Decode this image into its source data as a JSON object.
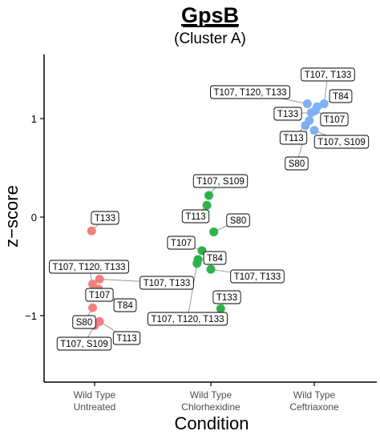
{
  "chart_data": {
    "type": "scatter",
    "title": "GpsB",
    "subtitle": "(Cluster A)",
    "xlabel": "Condition",
    "ylabel": "z−score",
    "categories": [
      {
        "line1": "Wild Type",
        "line2": "Untreated"
      },
      {
        "line1": "Wild Type",
        "line2": "Chlorhexidine"
      },
      {
        "line1": "Wild Type",
        "line2": "Ceftriaxone"
      }
    ],
    "yticks": [
      "1",
      "0",
      "−1"
    ],
    "ylim": [
      -1.65,
      1.55
    ],
    "colors": {
      "Wild Type Untreated": "#f08080",
      "Wild Type Chlorhexidine": "#2db34a",
      "Wild Type Ceftriaxone": "#7fb0f0"
    },
    "series": [
      {
        "category": 0,
        "points": [
          {
            "site": "T133",
            "x": -0.03,
            "y": -0.14
          },
          {
            "site": "T107, T120, T133",
            "x": -0.02,
            "y": -0.68
          },
          {
            "site": "T107, T133",
            "x": 0.05,
            "y": -0.63
          },
          {
            "site": "T107",
            "x": -0.02,
            "y": -0.78
          },
          {
            "site": "T84",
            "x": 0.04,
            "y": -0.73
          },
          {
            "site": "S80",
            "x": -0.02,
            "y": -0.92
          },
          {
            "site": "T107, S109",
            "x": 0.0,
            "y": -1.1
          },
          {
            "site": "T113",
            "x": 0.05,
            "y": -1.06
          }
        ]
      },
      {
        "category": 1,
        "points": [
          {
            "site": "T107, S109",
            "x": -0.02,
            "y": 0.22
          },
          {
            "site": "T113",
            "x": -0.04,
            "y": 0.12
          },
          {
            "site": "S80",
            "x": 0.03,
            "y": -0.15
          },
          {
            "site": "T107",
            "x": -0.09,
            "y": -0.34
          },
          {
            "site": "T84",
            "x": -0.13,
            "y": -0.43
          },
          {
            "site": "T107, T120, T133",
            "x": -0.14,
            "y": -0.47
          },
          {
            "site": "T107, T133",
            "x": 0.0,
            "y": -0.53
          },
          {
            "site": "T133",
            "x": 0.1,
            "y": -0.93
          }
        ]
      },
      {
        "category": 2,
        "points": [
          {
            "site": "T107, T133",
            "x": 0.1,
            "y": 1.15
          },
          {
            "site": "T107, T120, T133",
            "x": -0.07,
            "y": 1.15
          },
          {
            "site": "T84",
            "x": 0.03,
            "y": 1.12
          },
          {
            "site": "T133",
            "x": -0.03,
            "y": 1.06
          },
          {
            "site": "T107",
            "x": 0.01,
            "y": 1.08
          },
          {
            "site": "T113",
            "x": -0.09,
            "y": 0.93
          },
          {
            "site": "T107, S109",
            "x": 0.0,
            "y": 0.88
          },
          {
            "site": "S80",
            "x": -0.05,
            "y": 0.98
          }
        ]
      }
    ],
    "grid": false,
    "legend": "none"
  }
}
